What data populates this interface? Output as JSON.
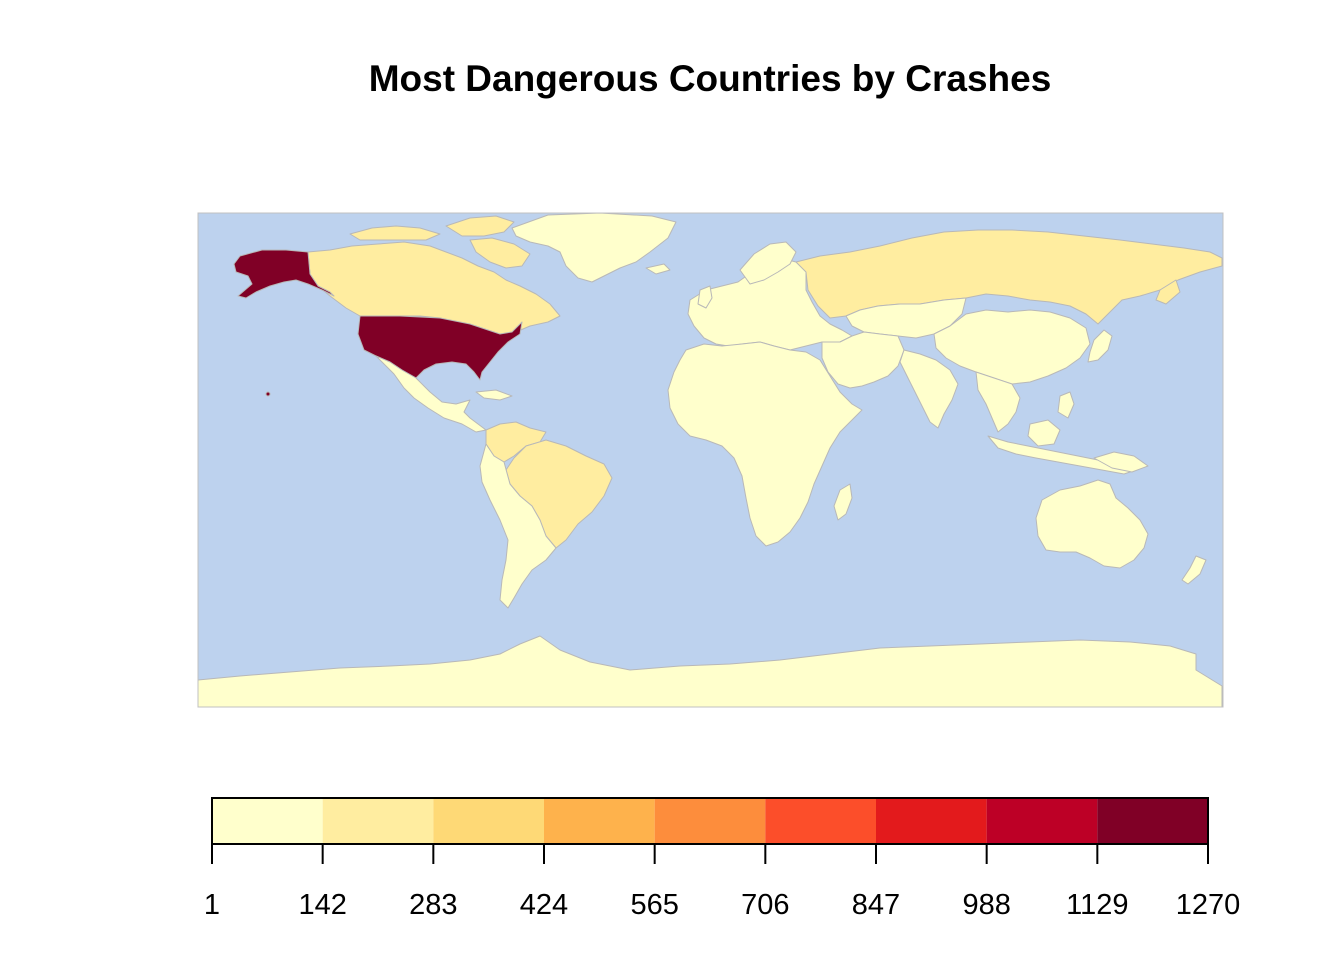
{
  "title": "Most Dangerous Countries by Crashes",
  "colors": {
    "ocean": "#bdd2ee",
    "border": "#b8b8b8",
    "frame": "#c0c0c0",
    "no_data": "#ffffff"
  },
  "legend": {
    "breaks": [
      "1",
      "142",
      "283",
      "424",
      "565",
      "706",
      "847",
      "988",
      "1129",
      "1270"
    ],
    "colors": [
      "#ffffcc",
      "#ffeda0",
      "#fed976",
      "#feb24c",
      "#fd8d3c",
      "#fc4e2a",
      "#e31a1c",
      "#bd0026",
      "#800026"
    ]
  },
  "chart_data": {
    "type": "choropleth",
    "title": "Most Dangerous Countries by Crashes",
    "scale": {
      "min": 1,
      "max": 1270,
      "breaks": [
        1,
        142,
        283,
        424,
        565,
        706,
        847,
        988,
        1129,
        1270
      ]
    },
    "regions": [
      {
        "region": "United States",
        "class_range": [
          1129,
          1270
        ]
      },
      {
        "region": "Canada",
        "class_range": [
          142,
          283
        ]
      },
      {
        "region": "Russia",
        "class_range": [
          142,
          283
        ]
      },
      {
        "region": "Brazil",
        "class_range": [
          142,
          283
        ]
      },
      {
        "region": "Colombia",
        "class_range": [
          142,
          283
        ]
      },
      {
        "region": "Other countries",
        "class_range": [
          1,
          142
        ]
      }
    ]
  }
}
